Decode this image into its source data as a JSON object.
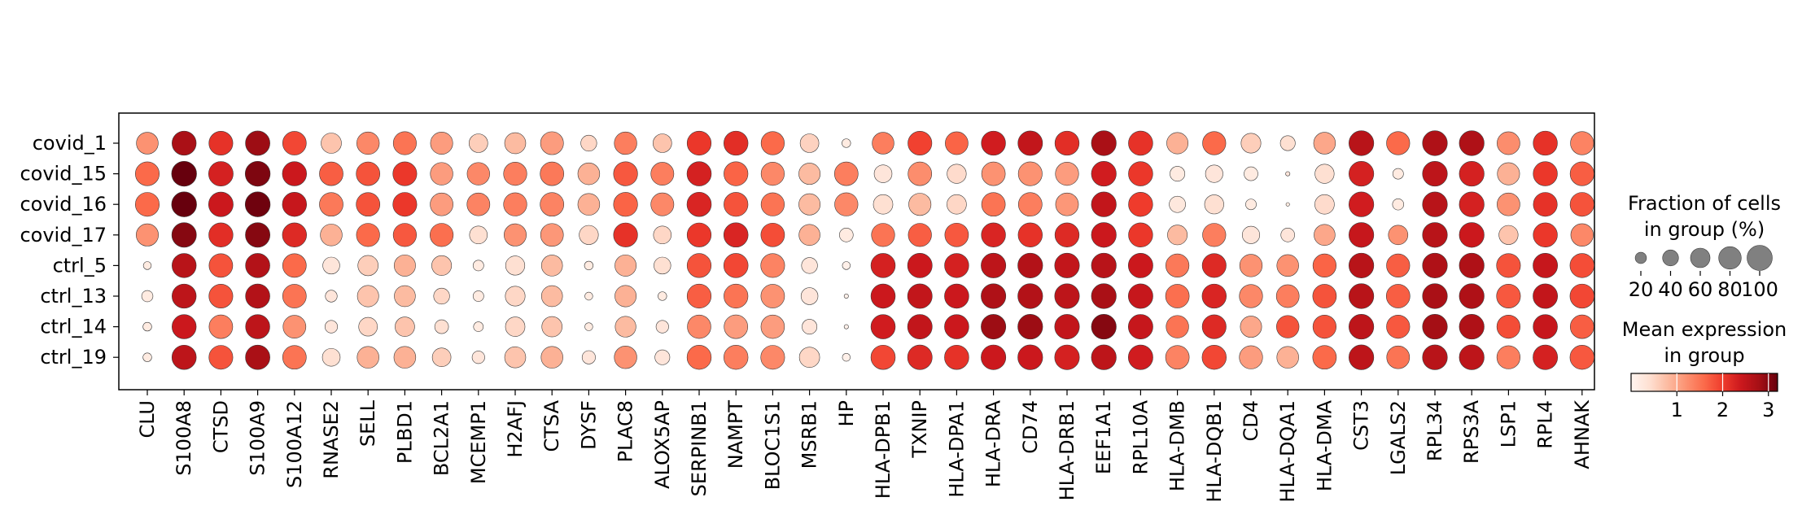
{
  "chart_data": {
    "type": "dotplot",
    "rows": [
      "covid_1",
      "covid_15",
      "covid_16",
      "covid_17",
      "ctrl_5",
      "ctrl_13",
      "ctrl_14",
      "ctrl_19"
    ],
    "columns": [
      "CLU",
      "S100A8",
      "CTSD",
      "S100A9",
      "S100A12",
      "RNASE2",
      "SELL",
      "PLBD1",
      "BCL2A1",
      "MCEMP1",
      "H2AFJ",
      "CTSA",
      "DYSF",
      "PLAC8",
      "ALOX5AP",
      "SERPINB1",
      "NAMPT",
      "BLOC1S1",
      "MSRB1",
      "HP",
      "HLA-DPB1",
      "TXNIP",
      "HLA-DPA1",
      "HLA-DRA",
      "CD74",
      "HLA-DRB1",
      "EEF1A1",
      "RPL10A",
      "HLA-DMB",
      "HLA-DQB1",
      "CD4",
      "HLA-DQA1",
      "HLA-DMA",
      "CST3",
      "LGALS2",
      "RPL34",
      "RPS3A",
      "LSP1",
      "RPL4",
      "AHNAK"
    ],
    "fraction_pct": [
      [
        75,
        92,
        90,
        94,
        88,
        65,
        80,
        84,
        78,
        55,
        70,
        83,
        40,
        80,
        55,
        91,
        92,
        85,
        55,
        12,
        75,
        90,
        82,
        92,
        95,
        92,
        97,
        93,
        72,
        85,
        62,
        35,
        75,
        97,
        85,
        97,
        97,
        82,
        92,
        85
      ],
      [
        90,
        98,
        95,
        98,
        92,
        88,
        88,
        90,
        80,
        80,
        85,
        88,
        75,
        91,
        83,
        93,
        91,
        85,
        72,
        88,
        50,
        88,
        58,
        88,
        90,
        85,
        97,
        93,
        35,
        48,
        30,
        3,
        58,
        97,
        18,
        97,
        97,
        78,
        92,
        90
      ],
      [
        90,
        98,
        95,
        98,
        92,
        88,
        88,
        90,
        82,
        82,
        85,
        88,
        75,
        91,
        83,
        93,
        91,
        85,
        72,
        85,
        60,
        78,
        60,
        88,
        88,
        82,
        97,
        92,
        42,
        58,
        18,
        2,
        60,
        97,
        20,
        97,
        97,
        82,
        90,
        90
      ],
      [
        78,
        95,
        92,
        95,
        92,
        75,
        85,
        85,
        85,
        50,
        78,
        82,
        58,
        91,
        50,
        91,
        93,
        88,
        70,
        30,
        85,
        85,
        88,
        92,
        92,
        92,
        97,
        92,
        62,
        85,
        48,
        30,
        70,
        97,
        60,
        97,
        97,
        58,
        92,
        80
      ],
      [
        10,
        92,
        88,
        93,
        88,
        45,
        65,
        72,
        62,
        18,
        58,
        70,
        12,
        72,
        45,
        91,
        93,
        90,
        40,
        10,
        93,
        95,
        92,
        96,
        97,
        96,
        97,
        95,
        85,
        90,
        80,
        75,
        85,
        97,
        85,
        97,
        97,
        90,
        95,
        92
      ],
      [
        20,
        92,
        90,
        93,
        88,
        22,
        72,
        70,
        40,
        18,
        62,
        70,
        10,
        72,
        12,
        91,
        91,
        88,
        45,
        3,
        93,
        95,
        93,
        96,
        97,
        96,
        97,
        95,
        88,
        92,
        85,
        82,
        88,
        97,
        88,
        97,
        97,
        90,
        95,
        92
      ],
      [
        12,
        92,
        88,
        92,
        82,
        25,
        55,
        60,
        30,
        15,
        60,
        65,
        10,
        68,
        25,
        87,
        88,
        87,
        35,
        3,
        93,
        95,
        93,
        96,
        97,
        96,
        97,
        95,
        80,
        90,
        72,
        80,
        85,
        97,
        85,
        97,
        97,
        85,
        93,
        88
      ],
      [
        12,
        93,
        90,
        94,
        88,
        50,
        75,
        75,
        55,
        25,
        70,
        75,
        28,
        80,
        35,
        92,
        92,
        90,
        65,
        10,
        93,
        95,
        93,
        96,
        97,
        96,
        97,
        95,
        88,
        92,
        85,
        75,
        88,
        97,
        82,
        97,
        97,
        85,
        95,
        92
      ]
    ],
    "mean_expression": [
      [
        1.2,
        2.75,
        2.1,
        2.85,
        1.9,
        0.7,
        1.3,
        1.5,
        1.1,
        0.6,
        0.8,
        1.1,
        0.5,
        1.4,
        0.7,
        2.05,
        2.15,
        1.6,
        0.55,
        0.2,
        1.4,
        1.95,
        1.65,
        2.35,
        2.5,
        2.15,
        2.75,
        2.1,
        0.9,
        1.6,
        0.6,
        0.4,
        1.0,
        2.6,
        1.6,
        2.7,
        2.7,
        1.25,
        2.1,
        1.35
      ],
      [
        1.6,
        3.2,
        2.3,
        3.05,
        2.4,
        1.7,
        1.8,
        2.05,
        1.1,
        1.3,
        1.4,
        1.45,
        0.9,
        1.75,
        1.4,
        2.3,
        1.65,
        1.3,
        0.8,
        1.4,
        0.3,
        1.25,
        0.45,
        1.2,
        1.2,
        1.1,
        2.35,
        2.05,
        0.2,
        0.3,
        0.2,
        0.3,
        0.4,
        2.3,
        0.2,
        2.55,
        2.3,
        0.9,
        2.05,
        1.7
      ],
      [
        1.6,
        3.2,
        2.4,
        3.15,
        2.45,
        1.45,
        1.8,
        2.05,
        1.1,
        1.35,
        1.4,
        1.35,
        0.9,
        1.65,
        1.3,
        2.25,
        1.8,
        1.5,
        0.8,
        1.3,
        0.4,
        0.8,
        0.5,
        1.5,
        1.4,
        1.15,
        2.5,
        2.0,
        0.25,
        0.4,
        0.2,
        0.2,
        0.45,
        2.35,
        0.2,
        2.6,
        2.3,
        1.2,
        2.1,
        1.8
      ],
      [
        1.2,
        3.0,
        2.15,
        3.0,
        2.2,
        0.9,
        1.6,
        1.75,
        1.55,
        0.4,
        1.2,
        1.15,
        0.5,
        2.1,
        0.5,
        2.05,
        2.25,
        1.85,
        0.9,
        0.2,
        1.5,
        1.7,
        1.75,
        2.25,
        2.1,
        2.2,
        2.4,
        2.05,
        0.8,
        1.4,
        0.3,
        0.3,
        1.0,
        2.45,
        1.2,
        2.6,
        2.4,
        0.7,
        2.05,
        1.3
      ],
      [
        0.2,
        2.6,
        1.8,
        2.65,
        1.6,
        0.3,
        0.6,
        0.9,
        0.7,
        0.2,
        0.4,
        0.8,
        0.2,
        0.9,
        0.4,
        1.8,
        1.9,
        1.35,
        0.3,
        0.1,
        2.3,
        2.4,
        2.3,
        2.55,
        2.65,
        2.5,
        2.6,
        2.4,
        1.45,
        2.2,
        1.2,
        1.2,
        1.65,
        2.6,
        1.7,
        2.7,
        2.7,
        1.8,
        2.45,
        1.85
      ],
      [
        0.2,
        2.55,
        1.8,
        2.65,
        1.5,
        0.3,
        0.7,
        0.8,
        0.5,
        0.2,
        0.5,
        0.8,
        0.2,
        0.9,
        0.2,
        1.7,
        1.5,
        1.2,
        0.3,
        0.1,
        2.4,
        2.5,
        2.4,
        2.7,
        2.65,
        2.55,
        2.75,
        2.45,
        1.55,
        2.25,
        1.3,
        1.4,
        1.8,
        2.6,
        1.7,
        2.75,
        2.7,
        1.75,
        2.5,
        1.9
      ],
      [
        0.2,
        2.4,
        1.4,
        2.55,
        1.2,
        0.3,
        0.5,
        0.7,
        0.4,
        0.2,
        0.5,
        0.7,
        0.2,
        0.8,
        0.3,
        1.3,
        1.1,
        1.1,
        0.3,
        0.1,
        2.35,
        2.5,
        2.4,
        2.85,
        2.85,
        2.5,
        3.0,
        2.45,
        1.5,
        2.2,
        1.0,
        1.8,
        1.8,
        2.55,
        1.75,
        2.8,
        2.7,
        1.85,
        2.45,
        1.7
      ],
      [
        0.2,
        2.55,
        1.8,
        2.75,
        1.5,
        0.4,
        0.9,
        0.9,
        0.6,
        0.3,
        0.7,
        0.9,
        0.3,
        1.2,
        0.3,
        1.6,
        1.4,
        1.3,
        0.5,
        0.1,
        1.9,
        2.2,
        2.1,
        2.4,
        2.4,
        2.3,
        2.55,
        2.35,
        1.35,
        1.9,
        1.1,
        0.9,
        1.6,
        2.55,
        1.5,
        2.6,
        2.55,
        1.4,
        2.3,
        1.75
      ]
    ],
    "legend_size": {
      "title_lines": [
        "Fraction of cells",
        "in group (%)"
      ],
      "values": [
        20,
        40,
        60,
        80,
        100
      ],
      "dot_color": "#808080"
    },
    "legend_color": {
      "title_lines": [
        "Mean expression",
        "in group"
      ],
      "range": [
        0,
        3.2
      ],
      "ticks": [
        1,
        2,
        3
      ],
      "colormap": "Reds",
      "stops": [
        "#fff5f0",
        "#fee0d2",
        "#fcbba1",
        "#fc9272",
        "#fb6a4a",
        "#ef3b2c",
        "#cb181d",
        "#a50f15",
        "#67000d"
      ]
    }
  }
}
